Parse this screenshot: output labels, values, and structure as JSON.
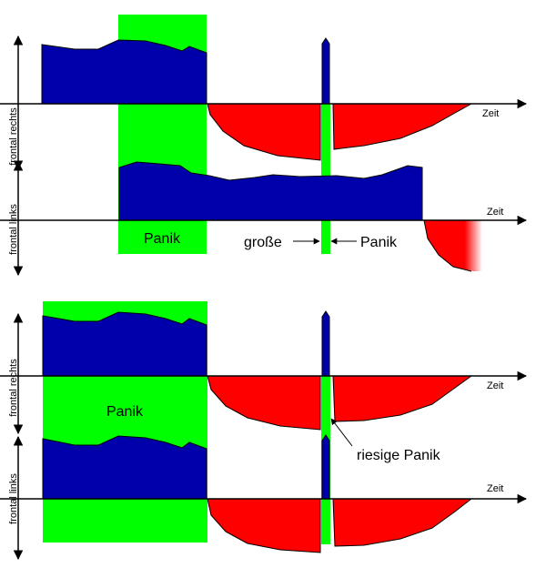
{
  "colors": {
    "positive": "#0000aa",
    "negative": "#ff0000",
    "panic": "#00ff00",
    "axis": "#000000",
    "background": "#ffffff"
  },
  "panel1": {
    "upper": {
      "ylabel": "frontal rechts",
      "xlabel": "Zeit"
    },
    "lower": {
      "ylabel": "frontal links",
      "xlabel": "Zeit"
    },
    "panic_label": "Panik",
    "small_panic": {
      "left_label": "große",
      "right_label": "Panik"
    }
  },
  "panel2": {
    "upper": {
      "ylabel": "frontal rechts",
      "xlabel": "Zeit"
    },
    "lower": {
      "ylabel": "frontal links",
      "xlabel": "Zeit"
    },
    "panic_label": "Panik",
    "small_panic_label": "riesige Panik"
  }
}
